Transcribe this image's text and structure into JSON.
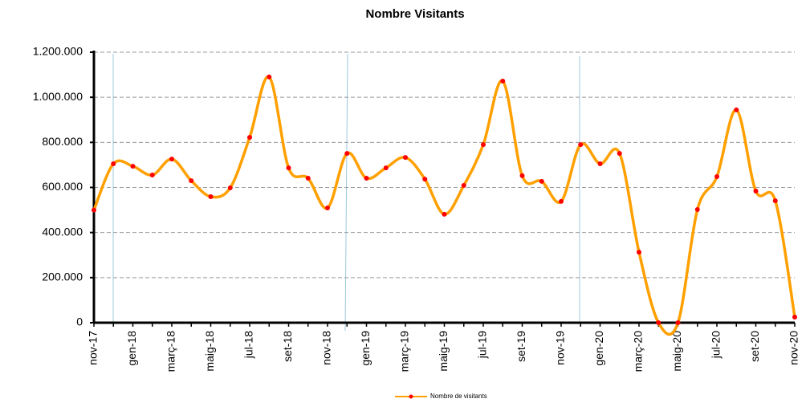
{
  "chart_data": {
    "type": "line",
    "title": "Nombre Visitants",
    "categories": [
      "nov-17",
      null,
      "gen-18",
      null,
      "març-18",
      null,
      "maig-18",
      null,
      "jul-18",
      null,
      "set-18",
      null,
      "nov-18",
      null,
      "gen-19",
      null,
      "març-19",
      null,
      "maig-19",
      null,
      "jul-19",
      null,
      "set-19",
      null,
      "nov-19",
      null,
      "gen-20",
      null,
      "març-20",
      null,
      "maig-20",
      null,
      "jul-20",
      null,
      "set-20",
      null,
      "nov-20"
    ],
    "series": [
      {
        "name": "Nombre de visitants",
        "color": "#ffa000",
        "marker_color": "#ff0000",
        "values": [
          500000,
          705000,
          694000,
          655000,
          726000,
          630000,
          559000,
          598000,
          822000,
          1090000,
          687000,
          641000,
          509000,
          751000,
          641000,
          687000,
          733000,
          637000,
          481000,
          609000,
          790000,
          1072000,
          652000,
          627000,
          538000,
          790000,
          705000,
          751000,
          313000,
          0,
          0,
          502000,
          648000,
          944000,
          584000,
          541000,
          25000
        ]
      }
    ],
    "ylim": [
      0,
      1200000
    ],
    "yticks": [
      0,
      {
        "value": 200000,
        "label": "200.000"
      },
      {
        "value": 400000,
        "label": "400.000"
      },
      {
        "value": 600000,
        "label": "600.000"
      },
      {
        "value": 800000,
        "label": "800.000"
      },
      {
        "value": 1000000,
        "label": "1.000.000"
      },
      {
        "value": 1200000,
        "label": "1.200.000"
      }
    ],
    "grid": true,
    "legend": "bottom"
  }
}
